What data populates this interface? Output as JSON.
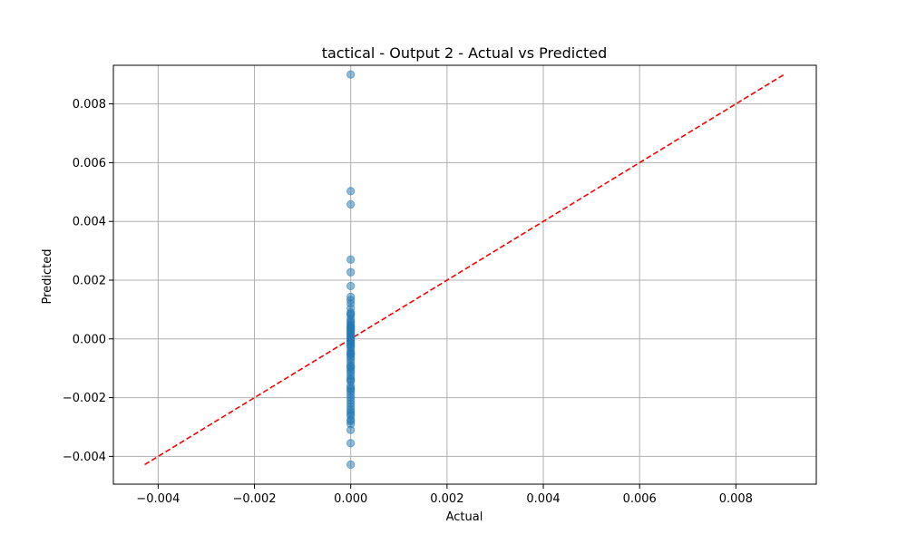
{
  "chart_data": {
    "type": "scatter",
    "title": "tactical - Output 2 - Actual vs Predicted",
    "xlabel": "Actual",
    "ylabel": "Predicted",
    "xlim": [
      -0.00493,
      0.00967
    ],
    "ylim": [
      -0.004945,
      0.009315
    ],
    "grid": true,
    "xticks": [
      -0.004,
      -0.002,
      0.0,
      0.002,
      0.004,
      0.006,
      0.008
    ],
    "xtick_labels": [
      "−0.004",
      "−0.002",
      "0.000",
      "0.002",
      "0.004",
      "0.006",
      "0.008"
    ],
    "yticks": [
      -0.004,
      -0.002,
      0.0,
      0.002,
      0.004,
      0.006,
      0.008
    ],
    "ytick_labels": [
      "−0.004",
      "−0.002",
      "0.000",
      "0.002",
      "0.004",
      "0.006",
      "0.008"
    ],
    "series": [
      {
        "kind": "scatter",
        "color": "#1f77b4",
        "x": [
          0,
          0,
          0,
          0,
          0,
          0,
          0,
          0,
          0,
          0,
          0,
          0,
          0,
          0,
          0,
          0,
          0,
          0,
          0,
          0,
          0,
          0,
          0,
          0,
          0,
          0,
          0,
          0,
          0,
          0,
          0,
          0,
          0,
          0,
          0,
          0,
          0,
          0,
          0,
          0,
          0,
          0,
          0,
          0,
          0,
          0,
          0,
          0,
          0,
          0,
          0,
          0,
          0,
          0,
          0,
          0,
          0,
          0,
          0,
          0,
          0,
          0,
          0,
          0,
          0,
          0,
          0,
          0
        ],
        "y": [
          0.009,
          0.00503,
          0.00458,
          0.0027,
          0.00227,
          0.0018,
          0.00143,
          0.00132,
          0.0012,
          0.00105,
          0.0009,
          0.0008,
          0.00068,
          0.0006,
          0.00055,
          0.00048,
          0.00042,
          0.00035,
          0.0003,
          0.00025,
          0.0002,
          0.00015,
          0.0001,
          5e-05,
          0.0,
          -5e-05,
          -0.0001,
          -0.00015,
          -0.0002,
          -0.00025,
          -0.0003,
          -0.0004,
          -0.00048,
          -0.00055,
          -0.00063,
          -0.0007,
          -0.0008,
          -0.0009,
          -0.001,
          -0.00108,
          -0.00115,
          -0.00125,
          -0.00135,
          -0.00145,
          -0.0016,
          -0.00168,
          -0.00172,
          -0.0018,
          -0.0019,
          -0.002,
          -0.0021,
          -0.0022,
          -0.0023,
          -0.0024,
          -0.00248,
          -0.00255,
          -0.00262,
          -0.00275,
          -0.0028,
          -0.0029,
          -0.0031,
          -0.00355,
          -0.00428,
          -0.0014,
          -0.00095,
          -0.0005,
          0.0004,
          0.00085
        ]
      },
      {
        "kind": "reference-line",
        "color": "#ff0000",
        "dashed": true,
        "x": [
          -0.00428,
          0.009
        ],
        "y": [
          -0.00428,
          0.009
        ]
      }
    ]
  }
}
